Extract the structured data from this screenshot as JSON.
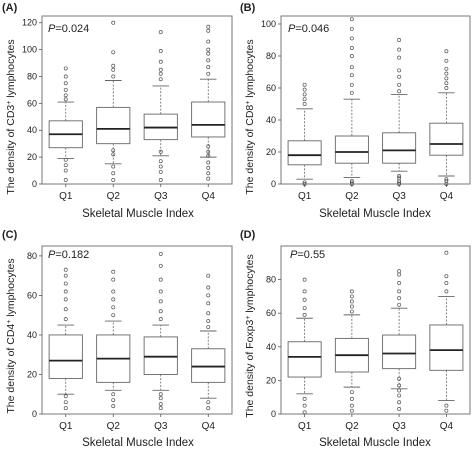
{
  "chart_data": [
    {
      "type": "boxplot",
      "panel_label": "(A)",
      "p_label": "P",
      "p_value": "=0.024",
      "ylabel_main": "The density of CD3",
      "ylabel_sup": "+",
      "ylabel_tail": " lymphocytes",
      "xlabel": "Skeletal Muscle Index",
      "categories": [
        "Q1",
        "Q2",
        "Q3",
        "Q4"
      ],
      "ylim": [
        0,
        125
      ],
      "yticks": [
        0,
        20,
        40,
        60,
        80,
        100,
        120
      ],
      "series": [
        {
          "min": 19,
          "q1": 27,
          "median": 37,
          "q3": 47,
          "max": 61,
          "outliers": [
            3,
            10,
            14,
            18,
            63,
            66,
            70,
            75,
            80,
            86
          ]
        },
        {
          "min": 15,
          "q1": 30,
          "median": 41,
          "q3": 57,
          "max": 77,
          "outliers": [
            3,
            8,
            13,
            22,
            25,
            80,
            85,
            88,
            98,
            120
          ]
        },
        {
          "min": 21,
          "q1": 33,
          "median": 42,
          "q3": 52,
          "max": 73,
          "outliers": [
            3,
            9,
            13,
            17,
            24,
            78,
            82,
            85,
            91,
            99,
            113
          ]
        },
        {
          "min": 20,
          "q1": 35,
          "median": 44,
          "q3": 61,
          "max": 78,
          "outliers": [
            4,
            8,
            12,
            16,
            21,
            24,
            28,
            82,
            87,
            92,
            97,
            100,
            106,
            114,
            117
          ]
        }
      ]
    },
    {
      "type": "boxplot",
      "panel_label": "(B)",
      "p_label": "P",
      "p_value": "=0.046",
      "ylabel_main": "The density of CD8",
      "ylabel_sup": "+",
      "ylabel_tail": " lymphocytes",
      "xlabel": "Skeletal Muscle Index",
      "categories": [
        "Q1",
        "Q2",
        "Q3",
        "Q4"
      ],
      "ylim": [
        0,
        105
      ],
      "yticks": [
        0,
        20,
        40,
        60,
        80,
        100
      ],
      "series": [
        {
          "min": 3,
          "q1": 12,
          "median": 18,
          "q3": 27,
          "max": 47,
          "outliers": [
            0,
            1,
            50,
            53,
            56,
            59,
            62
          ]
        },
        {
          "min": 4,
          "q1": 13,
          "median": 20,
          "q3": 30,
          "max": 53,
          "outliers": [
            0,
            1,
            2,
            57,
            62,
            68,
            73,
            80,
            85,
            91,
            97,
            103
          ]
        },
        {
          "min": 8,
          "q1": 13,
          "median": 21,
          "q3": 32,
          "max": 56,
          "outliers": [
            0,
            1,
            2,
            4,
            5,
            58,
            62,
            67,
            71,
            79,
            84,
            90
          ]
        },
        {
          "min": 5,
          "q1": 18,
          "median": 25,
          "q3": 38,
          "max": 57,
          "outliers": [
            0,
            2,
            3,
            60,
            63,
            66,
            69,
            72,
            77,
            83
          ]
        }
      ]
    },
    {
      "type": "boxplot",
      "panel_label": "(C)",
      "p_label": "P",
      "p_value": "=0.182",
      "ylabel_main": "The density of CD4",
      "ylabel_sup": "+",
      "ylabel_tail": " lymphocytes",
      "xlabel": "Skeletal Muscle Index",
      "categories": [
        "Q1",
        "Q2",
        "Q3",
        "Q4"
      ],
      "ylim": [
        0,
        85
      ],
      "yticks": [
        0,
        20,
        40,
        60,
        80
      ],
      "series": [
        {
          "min": 10,
          "q1": 18,
          "median": 27,
          "q3": 40,
          "max": 45,
          "outliers": [
            3,
            6,
            9,
            48,
            53,
            58,
            62,
            66,
            70,
            73
          ]
        },
        {
          "min": 12,
          "q1": 16,
          "median": 28,
          "q3": 40,
          "max": 47,
          "outliers": [
            4,
            7,
            10,
            50,
            54,
            58,
            62,
            68,
            72
          ]
        },
        {
          "min": 12,
          "q1": 20,
          "median": 29,
          "q3": 39,
          "max": 45,
          "outliers": [
            3,
            5,
            8,
            10,
            48,
            52,
            57,
            62,
            68,
            75,
            81
          ]
        },
        {
          "min": 8,
          "q1": 16,
          "median": 24,
          "q3": 33,
          "max": 42,
          "outliers": [
            3,
            6,
            44,
            47,
            51,
            56,
            60,
            64,
            70
          ]
        }
      ]
    },
    {
      "type": "boxplot",
      "panel_label": "(D)",
      "p_label": "P",
      "p_value": "=0.55",
      "ylabel_main": "The density of Foxp3",
      "ylabel_sup": "+",
      "ylabel_tail": " lymphocytes",
      "xlabel": "Skeletal Muscle Index",
      "categories": [
        "Q1",
        "Q2",
        "Q3",
        "Q4"
      ],
      "ylim": [
        0,
        100
      ],
      "yticks": [
        0,
        20,
        40,
        60,
        80
      ],
      "series": [
        {
          "min": 12,
          "q1": 22,
          "median": 34,
          "q3": 43,
          "max": 57,
          "outliers": [
            1,
            5,
            9,
            59,
            63,
            68,
            73,
            80
          ]
        },
        {
          "min": 16,
          "q1": 25,
          "median": 35,
          "q3": 45,
          "max": 59,
          "outliers": [
            2,
            5,
            9,
            13,
            61,
            64,
            67,
            70,
            73
          ]
        },
        {
          "min": 15,
          "q1": 27,
          "median": 36,
          "q3": 47,
          "max": 63,
          "outliers": [
            3,
            7,
            11,
            14,
            17,
            21,
            65,
            69,
            73,
            78,
            83,
            85
          ]
        },
        {
          "min": 8,
          "q1": 26,
          "median": 38,
          "q3": 53,
          "max": 70,
          "outliers": [
            2,
            5,
            73,
            78,
            82,
            96
          ]
        }
      ]
    }
  ]
}
